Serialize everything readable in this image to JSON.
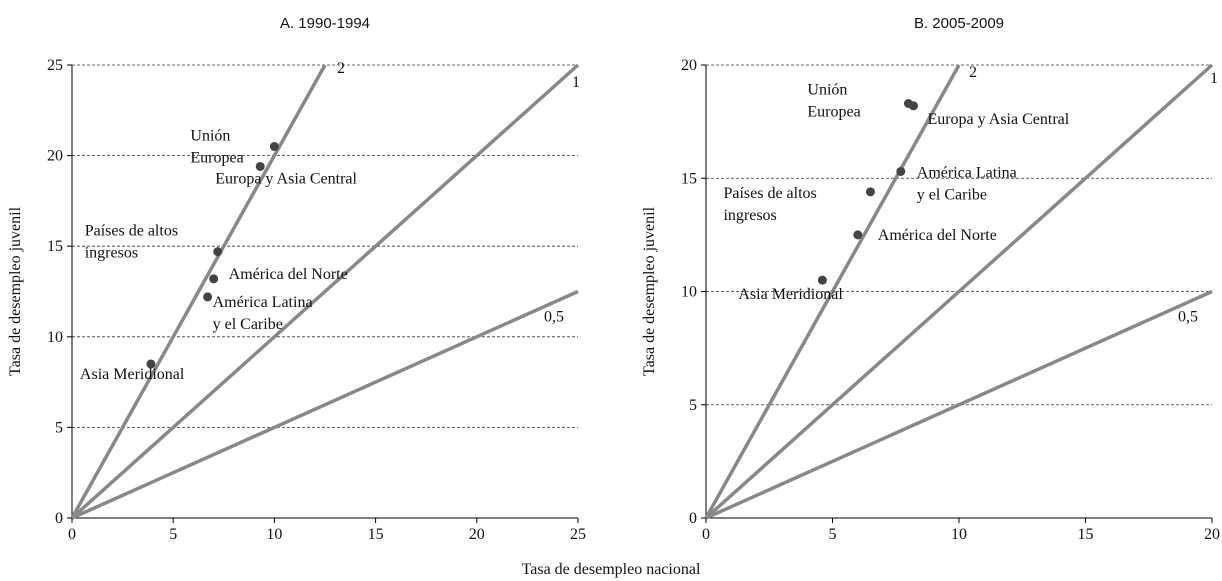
{
  "shared_xlabel": "Tasa de desempleo nacional",
  "chart_data": [
    {
      "type": "scatter",
      "title": "A. 1990-1994",
      "ylabel": "Tasa de desempleo juvenil",
      "xlim": [
        0,
        25
      ],
      "ylim": [
        0,
        25
      ],
      "xticks": [
        0,
        5,
        10,
        15,
        20,
        25
      ],
      "yticks": [
        0,
        5,
        10,
        15,
        20,
        25
      ],
      "grid": true,
      "color": "#444444",
      "line_color": "#888888",
      "reference_lines": [
        {
          "slope": 2,
          "label": "2"
        },
        {
          "slope": 1,
          "label": "1"
        },
        {
          "slope": 0.5,
          "label": "0,5"
        }
      ],
      "points": [
        {
          "label": [
            "Unión",
            "Europea"
          ],
          "x": 10,
          "y": 20.5
        },
        {
          "label": [
            "Europa y Asia Central"
          ],
          "x": 9.3,
          "y": 19.4
        },
        {
          "label": [
            "Países de altos",
            "ingresos"
          ],
          "x": 7.2,
          "y": 14.7
        },
        {
          "label": [
            "América del Norte"
          ],
          "x": 7.0,
          "y": 13.2
        },
        {
          "label": [
            "América Latina",
            "y el Caribe"
          ],
          "x": 6.7,
          "y": 12.2
        },
        {
          "label": [
            "Asia Meridional"
          ],
          "x": 3.9,
          "y": 8.5
        }
      ]
    },
    {
      "type": "scatter",
      "title": "B. 2005-2009",
      "ylabel": "Tasa de desempleo juvenil",
      "xlim": [
        0,
        20
      ],
      "ylim": [
        0,
        20
      ],
      "xticks": [
        0,
        5,
        10,
        15,
        20
      ],
      "yticks": [
        0,
        5,
        10,
        15,
        20
      ],
      "grid": true,
      "color": "#444444",
      "line_color": "#888888",
      "reference_lines": [
        {
          "slope": 2,
          "label": "2"
        },
        {
          "slope": 1,
          "label": "1"
        },
        {
          "slope": 0.5,
          "label": "0,5"
        }
      ],
      "points": [
        {
          "label": [
            "Unión",
            "Europea"
          ],
          "x": 8.0,
          "y": 18.3
        },
        {
          "label": [
            "Europa y Asia Central"
          ],
          "x": 8.2,
          "y": 18.2
        },
        {
          "label": [
            "América Latina",
            "y el Caribe"
          ],
          "x": 7.7,
          "y": 15.3
        },
        {
          "label": [
            "Países de altos",
            "ingresos"
          ],
          "x": 6.5,
          "y": 14.4
        },
        {
          "label": [
            "América del Norte"
          ],
          "x": 6.0,
          "y": 12.5
        },
        {
          "label": [
            "Asia Meridional"
          ],
          "x": 4.6,
          "y": 10.5
        }
      ]
    }
  ]
}
